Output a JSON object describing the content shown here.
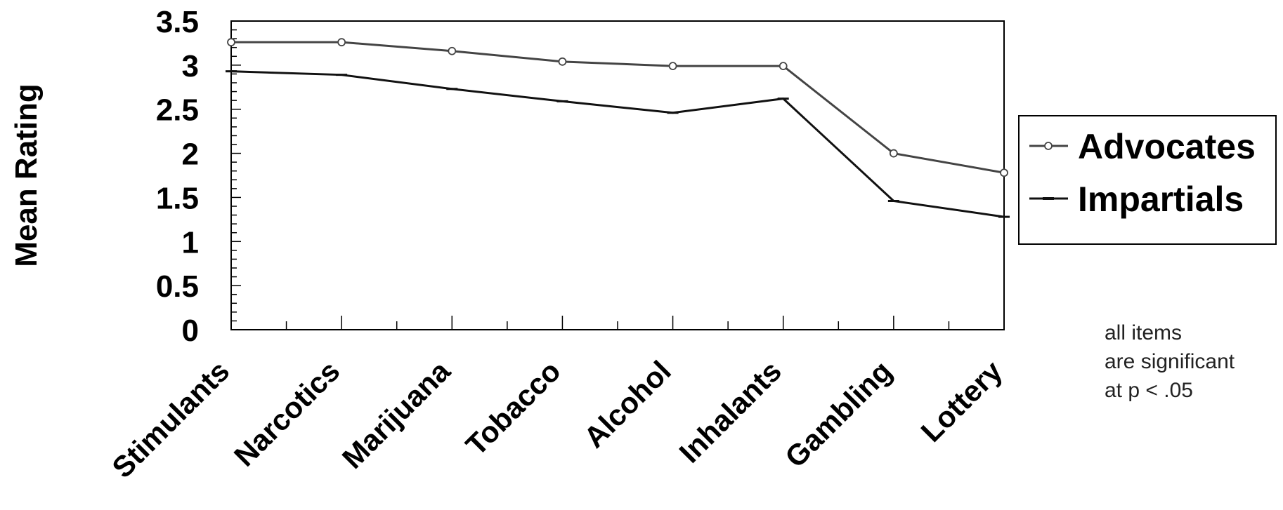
{
  "chart_data": {
    "type": "line",
    "title": "",
    "xlabel": "",
    "ylabel": "Mean Rating",
    "ylim": [
      0,
      3.5
    ],
    "yticks": [
      "0",
      "0.5",
      "1",
      "1.5",
      "2",
      "2.5",
      "3",
      "3.5"
    ],
    "grid": false,
    "legend_position": "right",
    "categories": [
      "Stimulants",
      "Narcotics",
      "Marijuana",
      "Tobacco",
      "Alcohol",
      "Inhalants",
      "Gambling",
      "Lottery"
    ],
    "series": [
      {
        "name": "Advocates",
        "color": "#444444",
        "marker": "circle",
        "values": [
          3.26,
          3.26,
          3.16,
          3.04,
          2.99,
          2.99,
          2.0,
          1.78
        ]
      },
      {
        "name": "Impartials",
        "color": "#111111",
        "marker": "dash",
        "values": [
          2.93,
          2.89,
          2.73,
          2.59,
          2.46,
          2.62,
          1.46,
          1.28
        ]
      }
    ],
    "annotation": [
      "all items",
      "are significant",
      "at p < .05"
    ]
  }
}
